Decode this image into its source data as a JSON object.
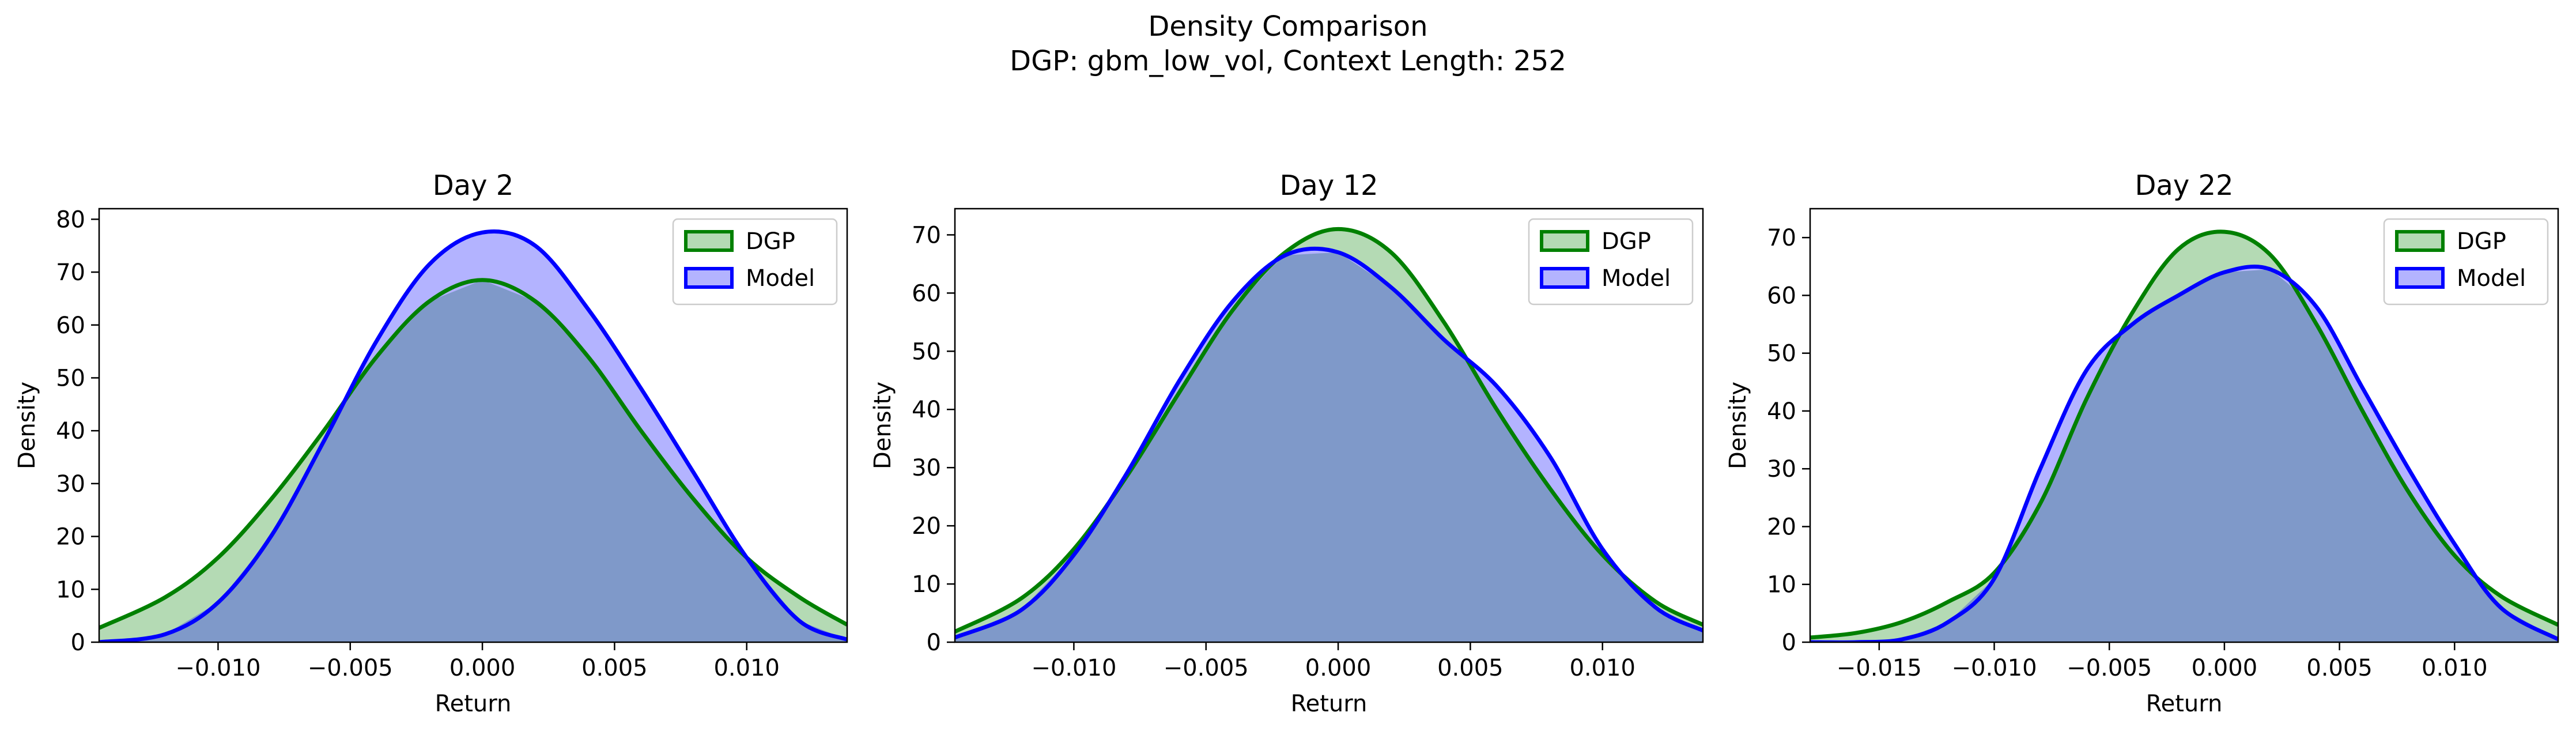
{
  "figure": {
    "title": "Density Comparison",
    "subtitle": "DGP: gbm_low_vol, Context Length: 252"
  },
  "colors": {
    "dgp_line": "#008000",
    "dgp_fill": "#b4dab4",
    "model_line": "#0000ff",
    "model_fill": "#b3b3ff",
    "overlap_fill": "#7f99c9"
  },
  "chart_data": [
    {
      "type": "area",
      "title": "Day 2",
      "xlabel": "Return",
      "ylabel": "Density",
      "xlim": [
        -0.0145,
        0.0138
      ],
      "ylim": [
        0,
        82
      ],
      "xticks": [
        -0.01,
        -0.005,
        0.0,
        0.005,
        0.01
      ],
      "xtick_labels": [
        "−0.010",
        "−0.005",
        "0.000",
        "0.005",
        "0.010"
      ],
      "yticks": [
        0,
        10,
        20,
        30,
        40,
        50,
        60,
        70,
        80
      ],
      "legend": "top-right",
      "series": [
        {
          "name": "DGP",
          "x": [
            -0.0145,
            -0.012,
            -0.01,
            -0.008,
            -0.006,
            -0.004,
            -0.002,
            0.0,
            0.002,
            0.004,
            0.006,
            0.008,
            0.01,
            0.012,
            0.0138
          ],
          "values": [
            2.7,
            8.5,
            16,
            27,
            40,
            54,
            64.5,
            68.5,
            64.5,
            54,
            40,
            27,
            16,
            8.5,
            3.3
          ]
        },
        {
          "name": "Model",
          "x": [
            -0.0145,
            -0.012,
            -0.01,
            -0.008,
            -0.006,
            -0.004,
            -0.002,
            0.0,
            0.002,
            0.004,
            0.006,
            0.008,
            0.01,
            0.012,
            0.0138
          ],
          "values": [
            0,
            1.5,
            7.5,
            20,
            38,
            57,
            71.5,
            77.5,
            75,
            63,
            48,
            32,
            16,
            4,
            0.5
          ]
        }
      ]
    },
    {
      "type": "area",
      "title": "Day 12",
      "xlabel": "Return",
      "ylabel": "Density",
      "xlim": [
        -0.0145,
        0.0138
      ],
      "ylim": [
        0,
        74.5
      ],
      "xticks": [
        -0.01,
        -0.005,
        0.0,
        0.005,
        0.01
      ],
      "xtick_labels": [
        "−0.010",
        "−0.005",
        "0.000",
        "0.005",
        "0.010"
      ],
      "yticks": [
        0,
        10,
        20,
        30,
        40,
        50,
        60,
        70
      ],
      "legend": "top-right",
      "series": [
        {
          "name": "DGP",
          "x": [
            -0.0145,
            -0.012,
            -0.01,
            -0.008,
            -0.006,
            -0.004,
            -0.002,
            0.0,
            0.002,
            0.004,
            0.006,
            0.008,
            0.01,
            0.012,
            0.0138
          ],
          "values": [
            1.8,
            7.5,
            16,
            28.5,
            43,
            57,
            67,
            71,
            67,
            55,
            40,
            26.5,
            15,
            7,
            3
          ]
        },
        {
          "name": "Model",
          "x": [
            -0.0145,
            -0.012,
            -0.01,
            -0.008,
            -0.006,
            -0.004,
            -0.002,
            0.0,
            0.002,
            0.004,
            0.006,
            0.008,
            0.01,
            0.012,
            0.0138
          ],
          "values": [
            0.8,
            5.5,
            15,
            29,
            45,
            58.5,
            66.5,
            67,
            61,
            52,
            44,
            32,
            16,
            6,
            2
          ]
        }
      ]
    },
    {
      "type": "area",
      "title": "Day 22",
      "xlabel": "Return",
      "ylabel": "Density",
      "xlim": [
        -0.018,
        0.0145
      ],
      "ylim": [
        0,
        75
      ],
      "xticks": [
        -0.015,
        -0.01,
        -0.005,
        0.0,
        0.005,
        0.01
      ],
      "xtick_labels": [
        "−0.015",
        "−0.010",
        "−0.005",
        "0.000",
        "0.005",
        "0.010"
      ],
      "yticks": [
        0,
        10,
        20,
        30,
        40,
        50,
        60,
        70
      ],
      "legend": "top-right",
      "series": [
        {
          "name": "DGP",
          "x": [
            -0.018,
            -0.016,
            -0.014,
            -0.012,
            -0.01,
            -0.008,
            -0.006,
            -0.004,
            -0.002,
            0.0,
            0.002,
            0.004,
            0.006,
            0.008,
            0.01,
            0.012,
            0.0145
          ],
          "values": [
            0.8,
            1.6,
            3.5,
            7,
            12,
            24,
            42,
            57,
            68,
            71,
            67,
            55,
            40,
            26,
            15,
            8,
            3
          ]
        },
        {
          "name": "Model",
          "x": [
            -0.018,
            -0.016,
            -0.014,
            -0.012,
            -0.01,
            -0.008,
            -0.006,
            -0.004,
            -0.002,
            0.0,
            0.002,
            0.004,
            0.006,
            0.008,
            0.01,
            0.012,
            0.0145
          ],
          "values": [
            0,
            0,
            0.5,
            3.5,
            11,
            30,
            47,
            55,
            60,
            64,
            64.5,
            58,
            44,
            30,
            17,
            6,
            0.5
          ]
        }
      ]
    }
  ]
}
